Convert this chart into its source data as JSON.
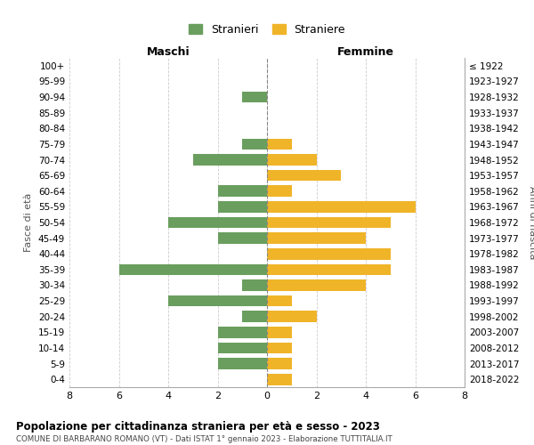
{
  "age_groups": [
    "100+",
    "95-99",
    "90-94",
    "85-89",
    "80-84",
    "75-79",
    "70-74",
    "65-69",
    "60-64",
    "55-59",
    "50-54",
    "45-49",
    "40-44",
    "35-39",
    "30-34",
    "25-29",
    "20-24",
    "15-19",
    "10-14",
    "5-9",
    "0-4"
  ],
  "birth_years": [
    "≤ 1922",
    "1923-1927",
    "1928-1932",
    "1933-1937",
    "1938-1942",
    "1943-1947",
    "1948-1952",
    "1953-1957",
    "1958-1962",
    "1963-1967",
    "1968-1972",
    "1973-1977",
    "1978-1982",
    "1983-1987",
    "1988-1992",
    "1993-1997",
    "1998-2002",
    "2003-2007",
    "2008-2012",
    "2013-2017",
    "2018-2022"
  ],
  "maschi": [
    0,
    0,
    1,
    0,
    0,
    1,
    3,
    0,
    2,
    2,
    4,
    2,
    0,
    6,
    1,
    4,
    1,
    2,
    2,
    2,
    0
  ],
  "femmine": [
    0,
    0,
    0,
    0,
    0,
    1,
    2,
    3,
    1,
    6,
    5,
    4,
    5,
    5,
    4,
    1,
    2,
    1,
    1,
    1,
    1
  ],
  "color_maschi": "#6a9e5e",
  "color_femmine": "#f0b429",
  "title1": "Popolazione per cittadinanza straniera per età e sesso - 2023",
  "title2": "COMUNE DI BARBARANO ROMANO (VT) - Dati ISTAT 1° gennaio 2023 - Elaborazione TUTTITALIA.IT",
  "label_maschi": "Maschi",
  "label_femmine": "Femmine",
  "ylabel_left": "Fasce di età",
  "ylabel_right": "Anni di nascita",
  "legend_maschi": "Stranieri",
  "legend_femmine": "Straniere",
  "xlim": 8,
  "bg_color": "#ffffff",
  "grid_color": "#cccccc"
}
